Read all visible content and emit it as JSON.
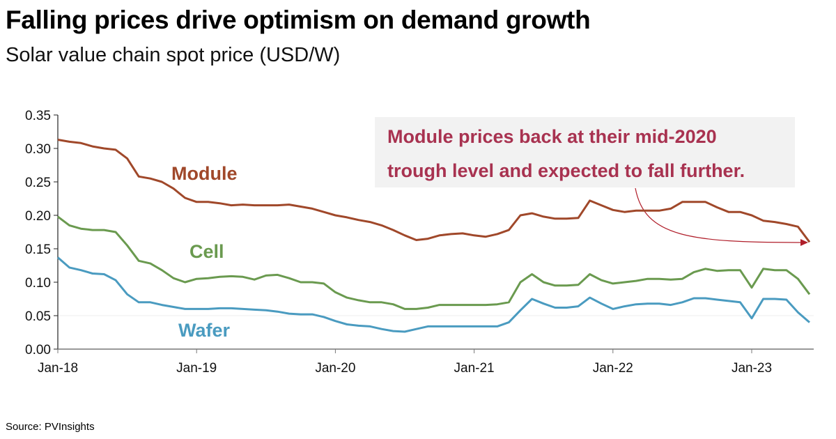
{
  "title": "Falling prices drive optimism on demand growth",
  "subtitle": "Solar value chain spot price (USD/W)",
  "source": "Source: PVInsights",
  "chart_data": {
    "type": "line",
    "xlabel": "",
    "ylabel": "",
    "ylim": [
      0,
      0.35
    ],
    "yticks": [
      "0.00",
      "0.05",
      "0.10",
      "0.15",
      "0.20",
      "0.25",
      "0.30",
      "0.35"
    ],
    "xticks": [
      "Jan-18",
      "Jan-19",
      "Jan-20",
      "Jan-21",
      "Jan-22",
      "Jan-23"
    ],
    "x_start": "2018-01",
    "x_end": "2023-06",
    "x_frequency": "monthly",
    "grid": false,
    "series": [
      {
        "name": "Module",
        "color": "#a0482a",
        "values": [
          0.313,
          0.31,
          0.308,
          0.303,
          0.3,
          0.298,
          0.285,
          0.258,
          0.255,
          0.25,
          0.24,
          0.226,
          0.22,
          0.22,
          0.218,
          0.215,
          0.216,
          0.215,
          0.215,
          0.215,
          0.216,
          0.213,
          0.21,
          0.205,
          0.2,
          0.197,
          0.193,
          0.19,
          0.185,
          0.178,
          0.17,
          0.163,
          0.165,
          0.17,
          0.172,
          0.173,
          0.17,
          0.168,
          0.172,
          0.178,
          0.2,
          0.203,
          0.198,
          0.195,
          0.195,
          0.196,
          0.222,
          0.215,
          0.208,
          0.205,
          0.207,
          0.207,
          0.207,
          0.21,
          0.22,
          0.22,
          0.22,
          0.212,
          0.205,
          0.205,
          0.2,
          0.192,
          0.19,
          0.187,
          0.183,
          0.16
        ]
      },
      {
        "name": "Cell",
        "color": "#6a9a4f",
        "values": [
          0.198,
          0.185,
          0.18,
          0.178,
          0.178,
          0.175,
          0.155,
          0.132,
          0.128,
          0.118,
          0.106,
          0.1,
          0.105,
          0.106,
          0.108,
          0.109,
          0.108,
          0.104,
          0.11,
          0.111,
          0.106,
          0.1,
          0.1,
          0.098,
          0.085,
          0.077,
          0.073,
          0.07,
          0.07,
          0.067,
          0.06,
          0.06,
          0.062,
          0.066,
          0.066,
          0.066,
          0.066,
          0.066,
          0.067,
          0.07,
          0.1,
          0.112,
          0.1,
          0.095,
          0.095,
          0.096,
          0.112,
          0.103,
          0.098,
          0.1,
          0.102,
          0.105,
          0.105,
          0.104,
          0.105,
          0.115,
          0.12,
          0.117,
          0.118,
          0.118,
          0.092,
          0.12,
          0.118,
          0.118,
          0.105,
          0.082
        ]
      },
      {
        "name": "Wafer",
        "color": "#4a9bc0",
        "values": [
          0.137,
          0.122,
          0.118,
          0.113,
          0.112,
          0.103,
          0.082,
          0.07,
          0.07,
          0.066,
          0.063,
          0.06,
          0.06,
          0.06,
          0.061,
          0.061,
          0.06,
          0.059,
          0.058,
          0.056,
          0.053,
          0.052,
          0.052,
          0.048,
          0.042,
          0.037,
          0.035,
          0.034,
          0.03,
          0.027,
          0.026,
          0.03,
          0.034,
          0.034,
          0.034,
          0.034,
          0.034,
          0.034,
          0.034,
          0.04,
          0.058,
          0.075,
          0.068,
          0.062,
          0.062,
          0.064,
          0.077,
          0.068,
          0.06,
          0.064,
          0.067,
          0.068,
          0.068,
          0.066,
          0.07,
          0.076,
          0.076,
          0.074,
          0.072,
          0.07,
          0.046,
          0.075,
          0.075,
          0.074,
          0.055,
          0.04
        ]
      }
    ],
    "annotation": {
      "lines": [
        "Module prices back at their mid-2020",
        "trough level and expected to fall further."
      ],
      "text_color": "#a83250",
      "box_color": "#f2f2f2"
    }
  }
}
